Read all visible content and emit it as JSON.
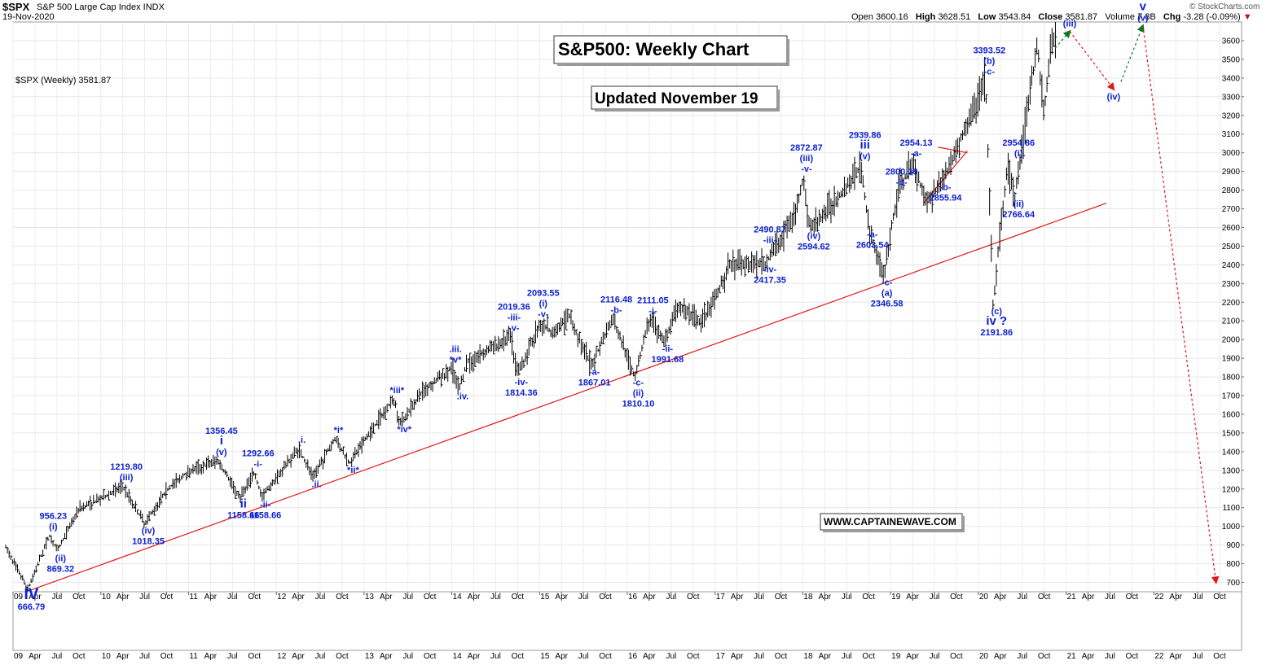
{
  "header": {
    "symbol": "$SPX",
    "description": "S&P 500 Large Cap Index  INDX",
    "date": "19-Nov-2020",
    "open_label": "Open",
    "open": "3600.16",
    "high_label": "High",
    "high": "3628.51",
    "low_label": "Low",
    "low": "3543.84",
    "close_label": "Close",
    "close": "3581.87",
    "volume_label": "Volume",
    "volume": "7.8B",
    "chg_label": "Chg",
    "chg": "-3.28 (-0.09%)",
    "watermark": "© StockCharts.com"
  },
  "legend": {
    "label": "$SPX (Weekly) 3581.87"
  },
  "title_box": {
    "text": "S&P500: Weekly Chart"
  },
  "updated_box": {
    "text": "Updated November 19"
  },
  "website_box": {
    "text": "WWW.CAPTAINEWAVE.COM"
  },
  "colors": {
    "wave_label": "#0b1fd1",
    "trendline": "#e01818",
    "projection_up": "#0a7a20",
    "projection_down": "#e01818",
    "price_bars": "#000000"
  },
  "chart_data": {
    "type": "line",
    "title": "S&P500: Weekly Chart",
    "series": [
      {
        "name": "$SPX (Weekly)",
        "x": [
          "2008-12",
          "2009-03",
          "2009-06",
          "2009-07",
          "2009-10",
          "2010-01",
          "2010-04",
          "2010-07",
          "2010-10",
          "2011-01",
          "2011-05",
          "2011-08",
          "2011-10",
          "2011-11",
          "2012-04",
          "2012-06",
          "2012-09",
          "2012-11",
          "2013-05",
          "2013-06",
          "2013-09",
          "2014-01",
          "2014-02",
          "2014-03",
          "2014-09",
          "2014-10",
          "2015-01",
          "2015-03",
          "2015-05",
          "2015-08",
          "2015-11",
          "2016-02",
          "2016-04",
          "2016-06",
          "2016-08",
          "2016-11",
          "2017-03",
          "2017-08",
          "2017-12",
          "2018-01",
          "2018-02",
          "2018-06",
          "2018-09",
          "2018-10",
          "2018-12",
          "2019-02",
          "2019-04",
          "2019-06",
          "2019-08",
          "2019-10",
          "2020-02",
          "2020-03",
          "2020-05",
          "2020-06",
          "2020-09",
          "2020-10",
          "2020-11"
        ],
        "y": [
          890,
          666.79,
          956.23,
          869.32,
          1100,
          1150,
          1219.8,
          1018.35,
          1200,
          1300,
          1356.45,
          1158.66,
          1292.66,
          1158.66,
          1422,
          1267,
          1474,
          1343,
          1687,
          1560,
          1730,
          1850,
          1737,
          1880,
          2019.36,
          1814.36,
          2093.55,
          2040,
          2134,
          1867.01,
          2116.48,
          1810.1,
          2111.05,
          1991.68,
          2193,
          2085,
          2400,
          2417.35,
          2690,
          2872.87,
          2594.62,
          2780,
          2939.86,
          2603.54,
          2346.58,
          2800.18,
          2954.13,
          2740,
          2855.94,
          3020,
          3393.52,
          2191.86,
          2954.86,
          2766.64,
          3588,
          3233,
          3600
        ]
      }
    ],
    "x_tick_labels": [
      "09",
      "Apr",
      "Jul",
      "Oct",
      "10",
      "Apr",
      "Jul",
      "Oct",
      "11",
      "Apr",
      "Jul",
      "Oct",
      "12",
      "Apr",
      "Jul",
      "Oct",
      "13",
      "Apr",
      "Jul",
      "Oct",
      "14",
      "Apr",
      "Jul",
      "Oct",
      "15",
      "Apr",
      "Jul",
      "Oct",
      "16",
      "Apr",
      "Jul",
      "Oct",
      "17",
      "Apr",
      "Jul",
      "Oct",
      "18",
      "Apr",
      "Jul",
      "Oct",
      "19",
      "Apr",
      "Jul",
      "Oct",
      "20",
      "Apr",
      "Jul",
      "Oct",
      "21",
      "Apr",
      "Jul",
      "Oct",
      "22",
      "Apr",
      "Jul",
      "Oct"
    ],
    "y_tick_labels": [
      700,
      800,
      900,
      1000,
      1100,
      1200,
      1300,
      1400,
      1500,
      1600,
      1700,
      1800,
      1900,
      2000,
      2100,
      2200,
      2300,
      2400,
      2500,
      2600,
      2700,
      2800,
      2900,
      3000,
      3100,
      3200,
      3300,
      3400,
      3500,
      3600
    ],
    "xlim": [
      "2009-01",
      "2022-12"
    ],
    "ylim": [
      650,
      3700
    ],
    "y_axis_position": "right",
    "grid": true,
    "trendline": {
      "from": [
        "2009-03",
        660
      ],
      "to": [
        "2021-06",
        2730
      ]
    },
    "wedge_lines": [
      {
        "from": [
          "2019-05",
          2730
        ],
        "to": [
          "2019-11",
          3010
        ]
      },
      {
        "from": [
          "2019-07",
          3030
        ],
        "to": [
          "2019-11",
          3000
        ]
      }
    ],
    "projections": [
      {
        "color": "up",
        "points": [
          [
            "2020-11",
            3560
          ],
          [
            "2021-01",
            3650
          ]
        ]
      },
      {
        "color": "down",
        "points": [
          [
            "2021-01",
            3650
          ],
          [
            "2021-07",
            3340
          ]
        ]
      },
      {
        "color": "up",
        "points": [
          [
            "2021-08",
            3380
          ],
          [
            "2021-11",
            3680
          ]
        ]
      },
      {
        "color": "down",
        "points": [
          [
            "2021-11",
            3680
          ],
          [
            "2022-09",
            700
          ]
        ]
      }
    ],
    "annotations": [
      {
        "x": "2009-03",
        "y": 666.79,
        "lines": [
          "IV",
          "666.79"
        ],
        "pos": "bottom"
      },
      {
        "x": "2009-06",
        "y": 956.23,
        "lines": [
          "956.23",
          "(i)"
        ],
        "pos": "top"
      },
      {
        "x": "2009-07",
        "y": 869.32,
        "lines": [
          "(ii)",
          "869.32"
        ],
        "pos": "bottom"
      },
      {
        "x": "2010-04",
        "y": 1219.8,
        "lines": [
          "1219.80",
          "(iii)"
        ],
        "pos": "top"
      },
      {
        "x": "2010-07",
        "y": 1018.35,
        "lines": [
          "(iv)",
          "1018.35"
        ],
        "pos": "bottom"
      },
      {
        "x": "2011-05",
        "y": 1356.45,
        "lines": [
          "1356.45",
          "i",
          "(v)"
        ],
        "pos": "top"
      },
      {
        "x": "2011-08",
        "y": 1158.66,
        "lines": [
          "ii",
          "1158.66"
        ],
        "pos": "bottom"
      },
      {
        "x": "2011-10",
        "y": 1292.66,
        "lines": [
          "1292.66",
          "-i-"
        ],
        "pos": "top"
      },
      {
        "x": "2011-11",
        "y": 1158.66,
        "lines": [
          "-ii-",
          "1158.66"
        ],
        "pos": "bottom"
      },
      {
        "x": "2012-04",
        "y": 1422,
        "lines": [
          ".i."
        ],
        "pos": "top"
      },
      {
        "x": "2012-06",
        "y": 1267,
        "lines": [
          ".ii."
        ],
        "pos": "bottom"
      },
      {
        "x": "2012-09",
        "y": 1474,
        "lines": [
          "*i*"
        ],
        "pos": "top"
      },
      {
        "x": "2012-11",
        "y": 1343,
        "lines": [
          "*ii*"
        ],
        "pos": "bottom"
      },
      {
        "x": "2013-05",
        "y": 1687,
        "lines": [
          "*iii*"
        ],
        "pos": "top"
      },
      {
        "x": "2013-06",
        "y": 1560,
        "lines": [
          "*iv*"
        ],
        "pos": "bottom"
      },
      {
        "x": "2014-01",
        "y": 1850,
        "lines": [
          ".iii.",
          "*v*"
        ],
        "pos": "top"
      },
      {
        "x": "2014-02",
        "y": 1737,
        "lines": [
          ".iv."
        ],
        "pos": "bottom"
      },
      {
        "x": "2014-09",
        "y": 2019.36,
        "lines": [
          "2019.36",
          "-iii-",
          "-v-"
        ],
        "pos": "top"
      },
      {
        "x": "2014-10",
        "y": 1814.36,
        "lines": [
          "-iv-",
          "1814.36"
        ],
        "pos": "bottom"
      },
      {
        "x": "2015-01",
        "y": 2093.55,
        "lines": [
          "2093.55",
          "(i)",
          "-v-"
        ],
        "pos": "top"
      },
      {
        "x": "2015-08",
        "y": 1867.01,
        "lines": [
          "-a-",
          "1867.01"
        ],
        "pos": "bottom"
      },
      {
        "x": "2015-11",
        "y": 2116.48,
        "lines": [
          "2116.48",
          "-b-"
        ],
        "pos": "top"
      },
      {
        "x": "2016-02",
        "y": 1810.1,
        "lines": [
          "-c-",
          "(ii)",
          "1810.10"
        ],
        "pos": "bottom"
      },
      {
        "x": "2016-04",
        "y": 2111.05,
        "lines": [
          "2111.05",
          "-i-"
        ],
        "pos": "top"
      },
      {
        "x": "2016-06",
        "y": 1991.68,
        "lines": [
          "-ii-",
          "1991.68"
        ],
        "pos": "bottom"
      },
      {
        "x": "2017-08",
        "y": 2490.87,
        "lines": [
          "2490.87",
          "-iii-"
        ],
        "pos": "top"
      },
      {
        "x": "2017-08",
        "y": 2417.35,
        "lines": [
          "-iv-",
          "2417.35"
        ],
        "pos": "bottom"
      },
      {
        "x": "2018-01",
        "y": 2872.87,
        "lines": [
          "2872.87",
          "(iii)",
          "-v-"
        ],
        "pos": "top"
      },
      {
        "x": "2018-02",
        "y": 2594.62,
        "lines": [
          "(iv)",
          "2594.62"
        ],
        "pos": "bottom"
      },
      {
        "x": "2018-09",
        "y": 2939.86,
        "lines": [
          "2939.86",
          "iii",
          "(v)"
        ],
        "pos": "top"
      },
      {
        "x": "2018-10",
        "y": 2603.54,
        "lines": [
          "-a-",
          "2603.54"
        ],
        "pos": "bottom"
      },
      {
        "x": "2018-12",
        "y": 2346.58,
        "lines": [
          "-c-",
          "(a)",
          "2346.58"
        ],
        "pos": "bottom"
      },
      {
        "x": "2019-02",
        "y": 2800.18,
        "lines": [
          "2800.18",
          "-b-"
        ],
        "pos": "top"
      },
      {
        "x": "2019-04",
        "y": 2954.13,
        "lines": [
          "2954.13",
          "-a-"
        ],
        "pos": "top"
      },
      {
        "x": "2019-08",
        "y": 2855.94,
        "lines": [
          "-b-",
          "2855.94"
        ],
        "pos": "bottom"
      },
      {
        "x": "2020-02",
        "y": 3393.52,
        "lines": [
          "3393.52",
          "(b)",
          "-c-"
        ],
        "pos": "top"
      },
      {
        "x": "2020-03",
        "y": 2191.86,
        "lines": [
          "(c)",
          "iv  ?",
          "2191.86"
        ],
        "pos": "bottom"
      },
      {
        "x": "2020-06",
        "y": 2954.86,
        "lines": [
          "2954.86",
          "(i)"
        ],
        "pos": "top"
      },
      {
        "x": "2020-06",
        "y": 2766.64,
        "lines": [
          "(ii)",
          "2766.64"
        ],
        "pos": "bottom"
      },
      {
        "x": "2021-01",
        "y": 3650,
        "lines": [
          "(iii)"
        ],
        "pos": "top"
      },
      {
        "x": "2021-07",
        "y": 3340,
        "lines": [
          "(iv)"
        ],
        "pos": "bottom"
      },
      {
        "x": "2021-11",
        "y": 3680,
        "lines": [
          "V",
          "v",
          "(v)"
        ],
        "pos": "top"
      }
    ]
  }
}
